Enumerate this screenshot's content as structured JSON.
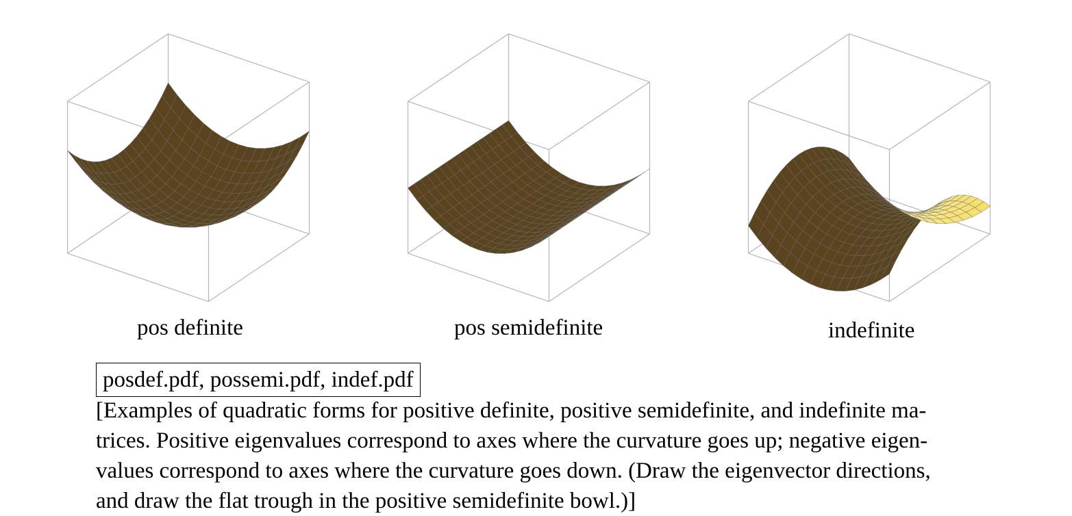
{
  "panels": [
    {
      "id": "posdef",
      "label": "pos definite",
      "curvature": [
        1,
        1
      ]
    },
    {
      "id": "possemi",
      "label": "pos semidefinite",
      "curvature": [
        1,
        0
      ]
    },
    {
      "id": "indef",
      "label": "indefinite",
      "curvature": [
        1,
        -1
      ]
    }
  ],
  "filenames": "posdef.pdf, possemi.pdf, indef.pdf",
  "caption_lines": [
    "[Examples of quadratic forms for positive definite, positive semidefinite, and indefinite ma-",
    "trices. Positive eigenvalues correspond to axes where the curvature goes up; negative eigen-",
    "values correspond to axes where the curvature goes down. (Draw the eigenvector directions,",
    "and draw the flat trough in the positive semidefinite bowl.)]"
  ],
  "colors": {
    "surface_light": "#fffbe6",
    "surface_mid": "#f7df6a",
    "surface_dark": "#d9a53a",
    "underside": "#5a4420",
    "mesh": "#6b6b6b",
    "box": "#b5b5b5"
  }
}
